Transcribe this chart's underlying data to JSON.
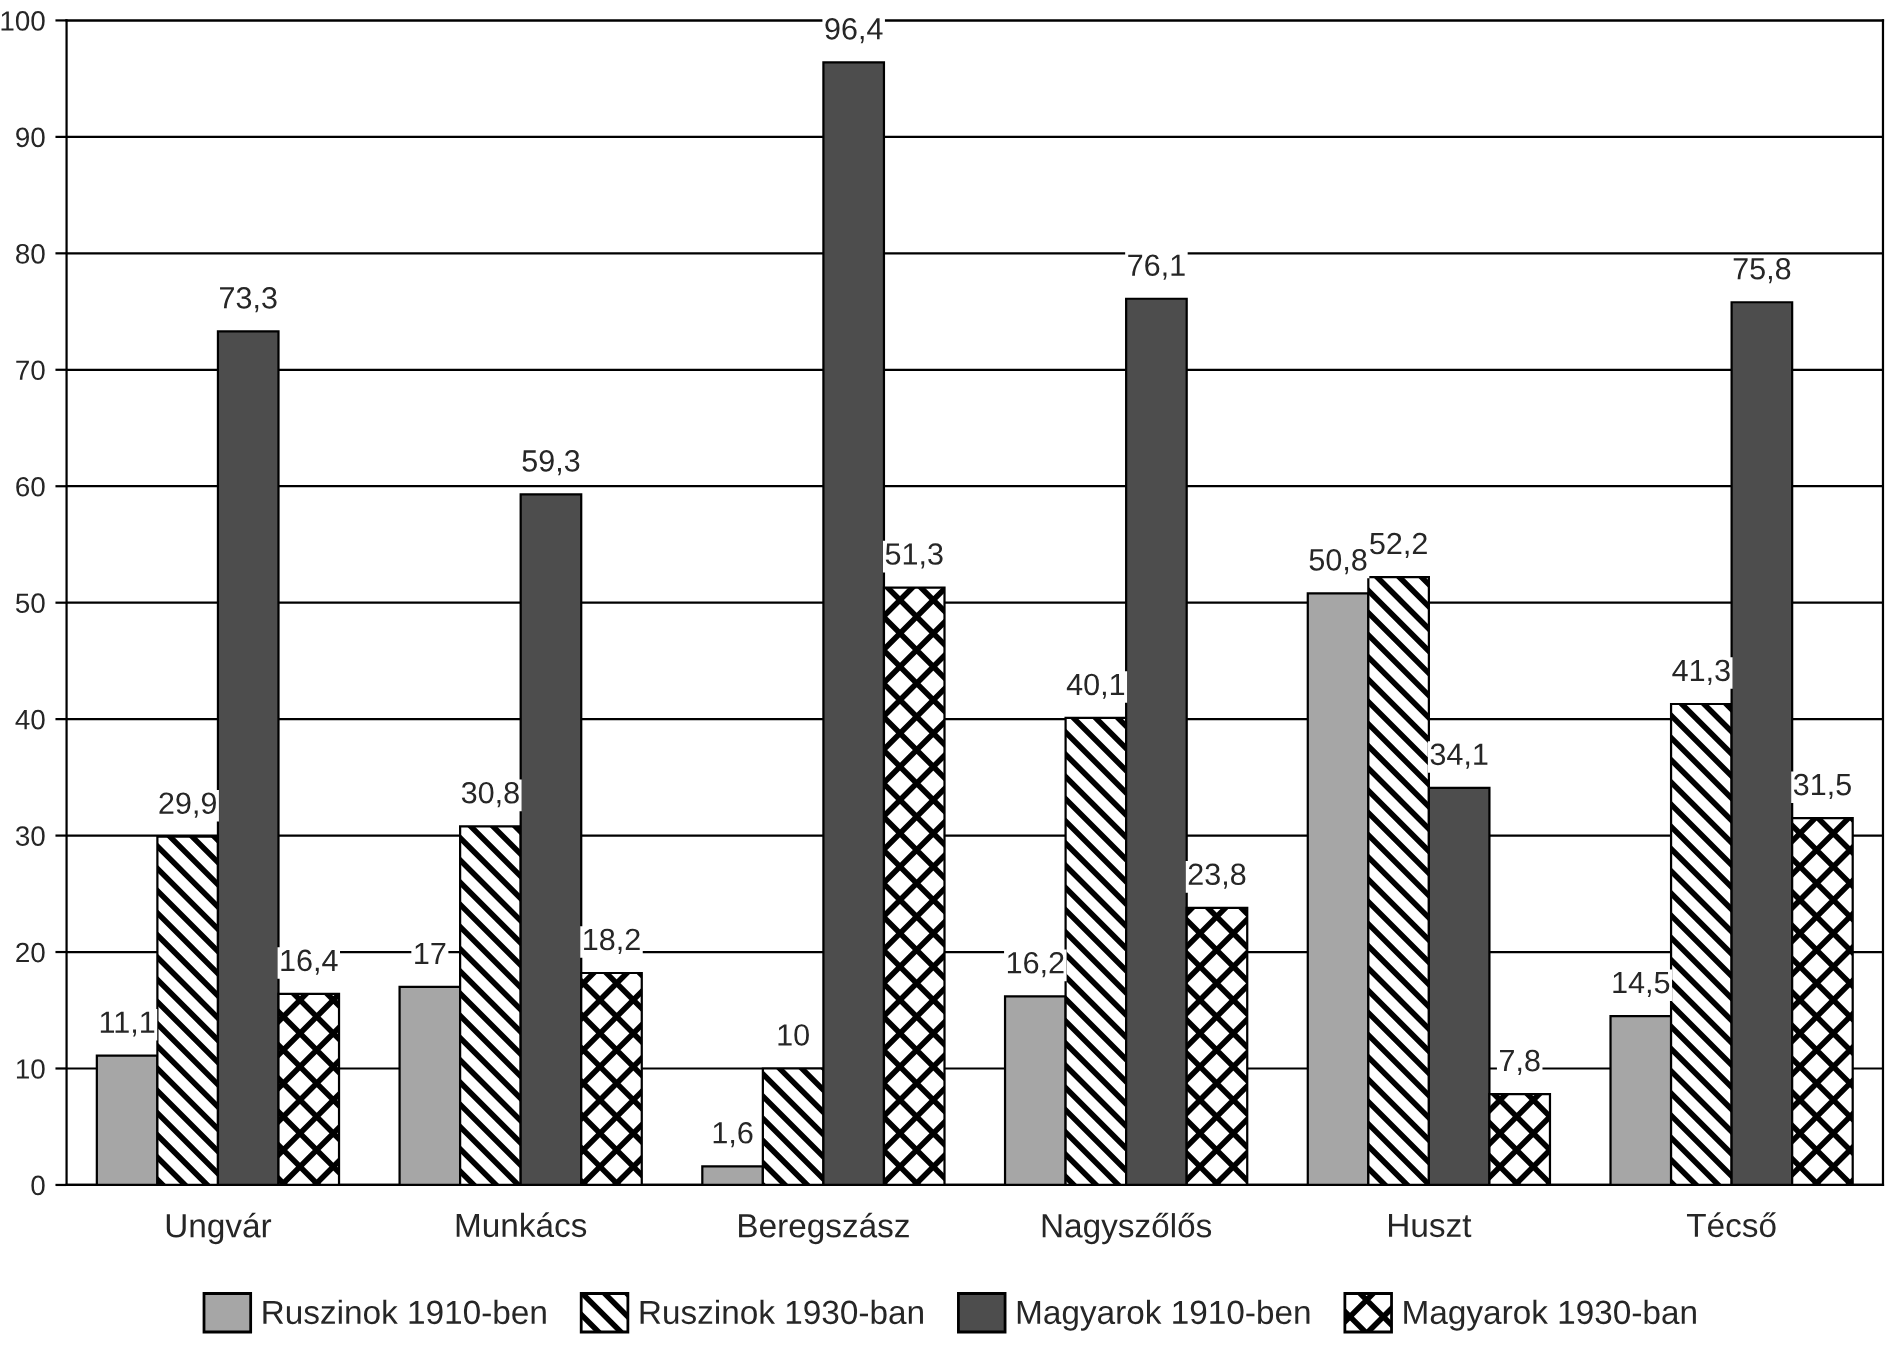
{
  "chart_data": {
    "type": "bar",
    "categories": [
      "Ungvár",
      "Munkács",
      "Beregszász",
      "Nagyszőlős",
      "Huszt",
      "Técső"
    ],
    "series": [
      {
        "name": "Ruszinok 1910-ben",
        "color": "#a6a6a6",
        "values": [
          11.1,
          17,
          1.6,
          16.2,
          50.8,
          14.5
        ],
        "value_labels": [
          "11,1",
          "17",
          "1,6",
          "16,2",
          "50,8",
          "14,5"
        ]
      },
      {
        "name": "Ruszinok 1930-ban",
        "color": "#000000",
        "values": [
          29.9,
          30.8,
          10,
          40.1,
          52.2,
          41.3
        ],
        "value_labels": [
          "29,9",
          "30,8",
          "10",
          "40,1",
          "52,2",
          "41,3"
        ]
      },
      {
        "name": "Magyarok 1910-ben",
        "color": "#4d4d4d",
        "values": [
          73.3,
          59.3,
          96.4,
          76.1,
          34.1,
          75.8
        ],
        "value_labels": [
          "73,3",
          "59,3",
          "96,4",
          "76,1",
          "34,1",
          "75,8"
        ]
      },
      {
        "name": "Magyarok 1930-ban",
        "color": "#000000",
        "values": [
          16.4,
          18.2,
          51.3,
          23.8,
          7.8,
          31.5
        ],
        "value_labels": [
          "16,4",
          "18,2",
          "51,3",
          "23,8",
          "7,8",
          "31,5"
        ]
      }
    ],
    "ylim": [
      0,
      100
    ],
    "yticks": [
      0,
      10,
      20,
      30,
      40,
      50,
      60,
      70,
      80,
      90,
      100
    ],
    "grid": "y",
    "legend": "bottom"
  }
}
